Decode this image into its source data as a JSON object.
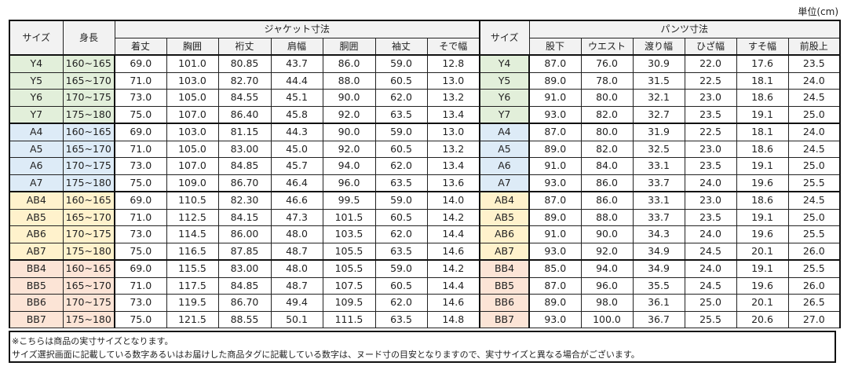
{
  "unit_label": "単位(cm)",
  "header": {
    "size": "サイズ",
    "height": "身長",
    "jacket_title": "ジャケット寸法",
    "jacket_cols": [
      "着丈",
      "胸囲",
      "裄丈",
      "肩幅",
      "胴囲",
      "袖丈",
      "そで幅"
    ],
    "pants_size": "サイズ",
    "pants_title": "パンツ寸法",
    "pants_cols": [
      "股下",
      "ウエスト",
      "渡り幅",
      "ひざ幅",
      "すそ幅",
      "前股上"
    ]
  },
  "group_colors": {
    "Y": "#e2efda",
    "A": "#ddebf7",
    "AB": "#fff2cc",
    "BB": "#fce4d6"
  },
  "rows": [
    {
      "group": "Y",
      "size": "Y4",
      "height": "160~165",
      "jacket": [
        "69.0",
        "101.0",
        "80.85",
        "43.7",
        "86.0",
        "59.0",
        "12.8"
      ],
      "pants": [
        "87.0",
        "76.0",
        "30.9",
        "22.0",
        "17.6",
        "23.5"
      ]
    },
    {
      "group": "Y",
      "size": "Y5",
      "height": "165~170",
      "jacket": [
        "71.0",
        "103.0",
        "82.70",
        "44.4",
        "88.0",
        "60.5",
        "13.0"
      ],
      "pants": [
        "89.0",
        "78.0",
        "31.5",
        "22.5",
        "18.1",
        "24.0"
      ]
    },
    {
      "group": "Y",
      "size": "Y6",
      "height": "170~175",
      "jacket": [
        "73.0",
        "105.0",
        "84.55",
        "45.1",
        "90.0",
        "62.0",
        "13.2"
      ],
      "pants": [
        "91.0",
        "80.0",
        "32.1",
        "23.0",
        "18.6",
        "24.5"
      ]
    },
    {
      "group": "Y",
      "size": "Y7",
      "height": "175~180",
      "jacket": [
        "75.0",
        "107.0",
        "86.40",
        "45.8",
        "92.0",
        "63.5",
        "13.4"
      ],
      "pants": [
        "93.0",
        "82.0",
        "32.7",
        "23.5",
        "19.1",
        "25.0"
      ]
    },
    {
      "group": "A",
      "size": "A4",
      "height": "160~165",
      "jacket": [
        "69.0",
        "103.0",
        "81.15",
        "44.3",
        "90.0",
        "59.0",
        "13.0"
      ],
      "pants": [
        "87.0",
        "80.0",
        "31.9",
        "22.5",
        "18.1",
        "24.0"
      ]
    },
    {
      "group": "A",
      "size": "A5",
      "height": "165~170",
      "jacket": [
        "71.0",
        "105.0",
        "83.00",
        "45.0",
        "92.0",
        "60.5",
        "13.2"
      ],
      "pants": [
        "89.0",
        "82.0",
        "32.5",
        "23.0",
        "18.6",
        "24.5"
      ]
    },
    {
      "group": "A",
      "size": "A6",
      "height": "170~175",
      "jacket": [
        "73.0",
        "107.0",
        "84.85",
        "45.7",
        "94.0",
        "62.0",
        "13.4"
      ],
      "pants": [
        "91.0",
        "84.0",
        "33.1",
        "23.5",
        "19.1",
        "25.0"
      ]
    },
    {
      "group": "A",
      "size": "A7",
      "height": "175~180",
      "jacket": [
        "75.0",
        "109.0",
        "86.70",
        "46.4",
        "96.0",
        "63.5",
        "13.6"
      ],
      "pants": [
        "93.0",
        "86.0",
        "33.7",
        "24.0",
        "19.6",
        "25.5"
      ]
    },
    {
      "group": "AB",
      "size": "AB4",
      "height": "160~165",
      "jacket": [
        "69.0",
        "110.5",
        "82.30",
        "46.6",
        "99.5",
        "59.0",
        "14.0"
      ],
      "pants": [
        "87.0",
        "86.0",
        "33.1",
        "23.0",
        "18.6",
        "24.5"
      ]
    },
    {
      "group": "AB",
      "size": "AB5",
      "height": "165~170",
      "jacket": [
        "71.0",
        "112.5",
        "84.15",
        "47.3",
        "101.5",
        "60.5",
        "14.2"
      ],
      "pants": [
        "89.0",
        "88.0",
        "33.7",
        "23.5",
        "19.1",
        "25.0"
      ]
    },
    {
      "group": "AB",
      "size": "AB6",
      "height": "170~175",
      "jacket": [
        "73.0",
        "114.5",
        "86.00",
        "48.0",
        "103.5",
        "62.0",
        "14.4"
      ],
      "pants": [
        "91.0",
        "90.0",
        "34.3",
        "24.0",
        "19.6",
        "25.5"
      ]
    },
    {
      "group": "AB",
      "size": "AB7",
      "height": "175~180",
      "jacket": [
        "75.0",
        "116.5",
        "87.85",
        "48.7",
        "105.5",
        "63.5",
        "14.6"
      ],
      "pants": [
        "93.0",
        "92.0",
        "34.9",
        "24.5",
        "20.1",
        "26.0"
      ]
    },
    {
      "group": "BB",
      "size": "BB4",
      "height": "160~165",
      "jacket": [
        "69.0",
        "115.5",
        "83.00",
        "48.0",
        "105.5",
        "59.0",
        "14.2"
      ],
      "pants": [
        "85.0",
        "94.0",
        "34.9",
        "24.0",
        "19.1",
        "25.5"
      ]
    },
    {
      "group": "BB",
      "size": "BB5",
      "height": "165~170",
      "jacket": [
        "71.0",
        "117.5",
        "84.85",
        "48.7",
        "107.5",
        "60.5",
        "14.4"
      ],
      "pants": [
        "87.0",
        "96.0",
        "35.5",
        "24.5",
        "19.6",
        "26.0"
      ]
    },
    {
      "group": "BB",
      "size": "BB6",
      "height": "170~175",
      "jacket": [
        "73.0",
        "119.5",
        "86.70",
        "49.4",
        "109.5",
        "62.0",
        "14.6"
      ],
      "pants": [
        "89.0",
        "98.0",
        "36.1",
        "25.0",
        "20.1",
        "26.5"
      ]
    },
    {
      "group": "BB",
      "size": "BB7",
      "height": "175~180",
      "jacket": [
        "75.0",
        "121.5",
        "88.55",
        "50.1",
        "111.5",
        "63.5",
        "14.8"
      ],
      "pants": [
        "93.0",
        "100.0",
        "36.7",
        "25.5",
        "20.6",
        "27.0"
      ]
    }
  ],
  "footer": {
    "note1": "※こちらは商品の実寸サイズとなります。",
    "note2": "サイズ選択画面に記載している数字あるいはお届けした商品タグに記載している数字は、ヌード寸の目安となりますので、実寸サイズと異なる場合がございます。"
  }
}
